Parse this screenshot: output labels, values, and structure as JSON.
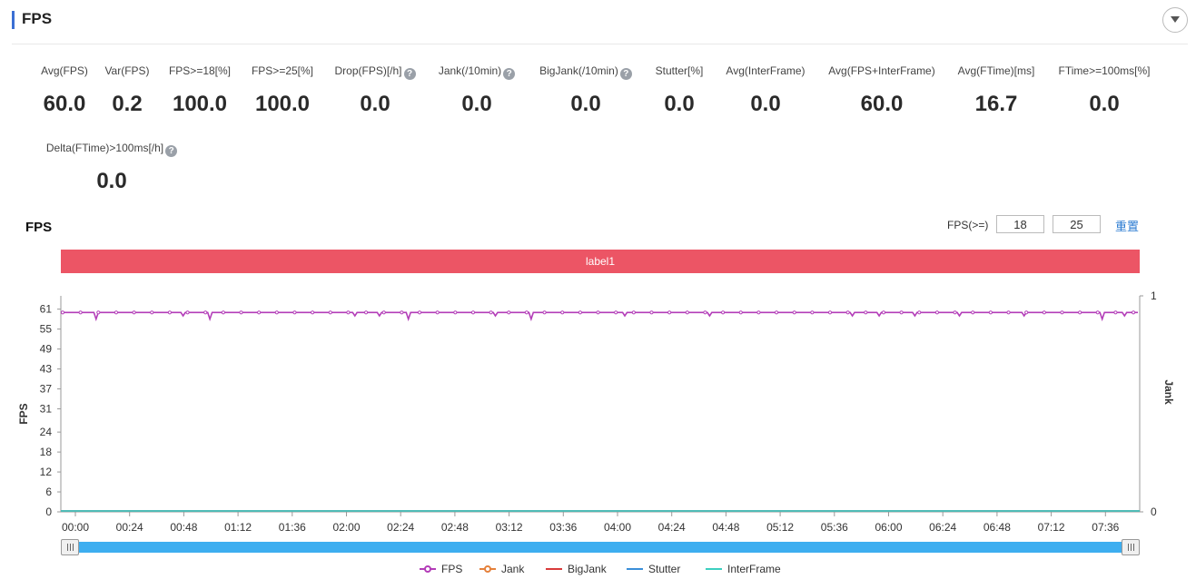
{
  "header": {
    "title": "FPS"
  },
  "metrics": [
    {
      "label": "Avg(FPS)",
      "value": "60.0",
      "help": false
    },
    {
      "label": "Var(FPS)",
      "value": "0.2",
      "help": false
    },
    {
      "label": "FPS>=18[%]",
      "value": "100.0",
      "help": false
    },
    {
      "label": "FPS>=25[%]",
      "value": "100.0",
      "help": false
    },
    {
      "label": "Drop(FPS)[/h]",
      "value": "0.0",
      "help": true
    },
    {
      "label": "Jank(/10min)",
      "value": "0.0",
      "help": true
    },
    {
      "label": "BigJank(/10min)",
      "value": "0.0",
      "help": true
    },
    {
      "label": "Stutter[%]",
      "value": "0.0",
      "help": false
    },
    {
      "label": "Avg(InterFrame)",
      "value": "0.0",
      "help": false
    },
    {
      "label": "Avg(FPS+InterFrame)",
      "value": "60.0",
      "help": false
    },
    {
      "label": "Avg(FTime)[ms]",
      "value": "16.7",
      "help": false
    },
    {
      "label": "FTime>=100ms[%]",
      "value": "0.0",
      "help": false
    },
    {
      "label": "Delta(FTime)>100ms[/h]",
      "value": "0.0",
      "help": true
    }
  ],
  "help_glyph": "?",
  "chart_panel": {
    "title": "FPS",
    "threshold_label": "FPS(>=)",
    "threshold_low": "18",
    "threshold_high": "25",
    "reset_label": "重置",
    "band_label": "label1"
  },
  "chart_data": {
    "type": "line",
    "title": "FPS",
    "ylabel": "FPS",
    "y2label": "Jank",
    "yticks": [
      0,
      6,
      12,
      18,
      24,
      31,
      37,
      43,
      49,
      55,
      61
    ],
    "ylim": [
      0,
      65
    ],
    "y2ticks": [
      0,
      1
    ],
    "xticks": [
      "00:00",
      "00:24",
      "00:48",
      "01:12",
      "01:36",
      "02:00",
      "02:24",
      "02:48",
      "03:12",
      "03:36",
      "04:00",
      "04:24",
      "04:48",
      "05:12",
      "05:36",
      "06:00",
      "06:24",
      "06:48",
      "07:12",
      "07:36"
    ],
    "x_range_seconds": [
      0,
      482
    ],
    "series": [
      {
        "name": "FPS",
        "color": "#b33db8",
        "base": 60,
        "dips": [
          [
            15,
            58
          ],
          [
            54,
            59
          ],
          [
            66,
            58
          ],
          [
            131,
            59
          ],
          [
            142,
            59
          ],
          [
            155,
            58
          ],
          [
            194,
            59
          ],
          [
            210,
            58
          ],
          [
            252,
            59
          ],
          [
            290,
            59
          ],
          [
            354,
            59
          ],
          [
            366,
            59
          ],
          [
            382,
            59
          ],
          [
            402,
            59
          ],
          [
            431,
            59
          ],
          [
            466,
            58
          ],
          [
            476,
            59
          ]
        ]
      },
      {
        "name": "Jank",
        "color": "#e5813b",
        "value": 0
      },
      {
        "name": "BigJank",
        "color": "#d93b3b",
        "value": 0
      },
      {
        "name": "Stutter",
        "color": "#3a8fd9",
        "value": 0
      },
      {
        "name": "InterFrame",
        "color": "#3dcfc0",
        "value": 0
      }
    ]
  },
  "colors": {
    "accent": "#3b6fd4",
    "band": "#ec5565",
    "scroller": "#3daef0"
  }
}
